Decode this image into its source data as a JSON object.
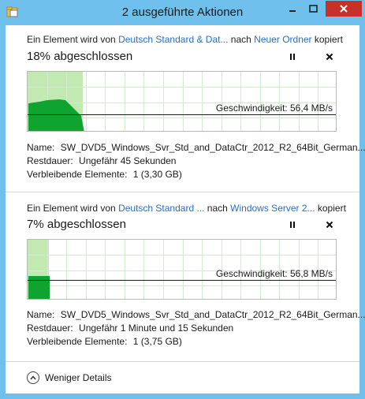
{
  "window": {
    "title": "2 ausgeführte Aktionen",
    "accent_color": "#6fc0ec",
    "close_color": "#c7312a"
  },
  "operations": [
    {
      "line_prefix": "Ein Element wird von ",
      "source": "Deutsch Standard & Dat...",
      "line_mid": " nach ",
      "destination": "Neuer Ordner",
      "line_suffix": " kopiert",
      "percent_label": "18% abgeschlossen",
      "progress_fraction": 0.18,
      "speed_label": "Geschwindigkeit: 56,4 MB/s",
      "name_label": "Name:",
      "name_value": "SW_DVD5_Windows_Svr_Std_and_DataCtr_2012_R2_64Bit_German...",
      "remaining_label": "Restdauer:",
      "remaining_value": "Ungefähr 45 Sekunden",
      "items_label": "Verbleibende Elemente:",
      "items_value": "1 (3,30 GB)"
    },
    {
      "line_prefix": "Ein Element wird von ",
      "source": "Deutsch Standard ...",
      "line_mid": " nach ",
      "destination": "Windows Server 2...",
      "line_suffix": " kopiert",
      "percent_label": "7% abgeschlossen",
      "progress_fraction": 0.07,
      "speed_label": "Geschwindigkeit: 56,8 MB/s",
      "name_label": "Name:",
      "name_value": "SW_DVD5_Windows_Svr_Std_and_DataCtr_2012_R2_64Bit_German...",
      "remaining_label": "Restdauer:",
      "remaining_value": "Ungefähr 1 Minute und 15 Sekunden",
      "items_label": "Verbleibende Elemente:",
      "items_value": "1 (3,75 GB)"
    }
  ],
  "footer": {
    "less_details_label": "Weniger Details"
  },
  "icons": {
    "pause": "pause-icon",
    "cancel": "close-icon",
    "less": "chevron-up-icon"
  }
}
